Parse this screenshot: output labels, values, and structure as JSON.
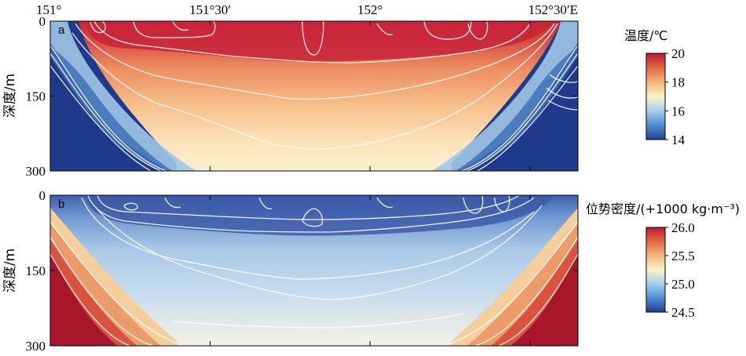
{
  "chart_data": [
    {
      "type": "heatmap",
      "panel": "a",
      "x_ticks": [
        "151°",
        "151°30′",
        "152°",
        "152°30′E"
      ],
      "xlim_deg": [
        151.0,
        152.65
      ],
      "x_tick_values_deg": [
        151.0,
        151.5,
        152.0,
        152.5
      ],
      "ylabel": "深度/m",
      "y_ticks": [
        "0",
        "150",
        "300"
      ],
      "y_tick_values": [
        0,
        150,
        300
      ],
      "ylim": [
        300,
        0
      ],
      "colorbar": {
        "label": "温度/℃",
        "ticks": [
          "14",
          "16",
          "18",
          "20"
        ],
        "tick_values": [
          14,
          16,
          18,
          20
        ],
        "range": [
          14,
          20
        ],
        "colors": [
          "#1f3f96",
          "#4f8fd0",
          "#a9d1ec",
          "#f8f2c4",
          "#f5b478",
          "#e06545",
          "#b81d2e"
        ]
      }
    },
    {
      "type": "heatmap",
      "panel": "b",
      "x_ticks": [],
      "xlim_deg": [
        151.0,
        152.65
      ],
      "x_tick_values_deg": [
        151.0,
        151.5,
        152.0,
        152.5
      ],
      "ylabel": "深度/m",
      "y_ticks": [
        "0",
        "150",
        "300"
      ],
      "y_tick_values": [
        0,
        150,
        300
      ],
      "ylim": [
        300,
        0
      ],
      "colorbar": {
        "label": "位势密度/(+1000 kg·m⁻³)",
        "ticks": [
          "26.0",
          "25.5",
          "25.0",
          "24.5"
        ],
        "tick_values": [
          26.0,
          25.5,
          25.0,
          24.5
        ],
        "range": [
          24.5,
          26.0
        ],
        "colors": [
          "#1f3f96",
          "#4f8fd0",
          "#a9d1ec",
          "#f8f2c4",
          "#f5b478",
          "#e06545",
          "#b81d2e"
        ]
      }
    }
  ]
}
